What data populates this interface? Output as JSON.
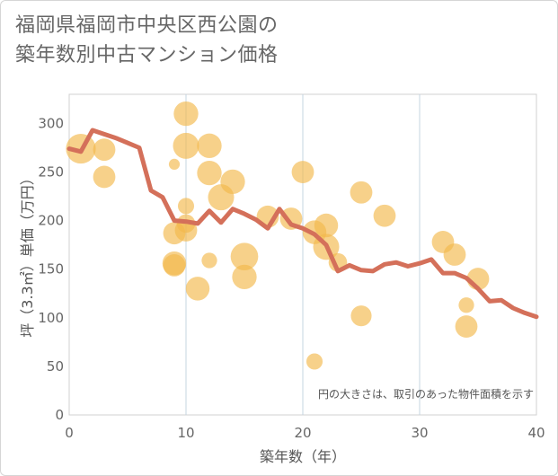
{
  "chart_data": {
    "type": "scatter",
    "title_lines": [
      "福岡県福岡市中央区西公園の",
      "築年数別中古マンション価格"
    ],
    "xlabel": "築年数（年）",
    "ylabel": "坪（3.3㎡）単価（万円）",
    "xlim": [
      0,
      40
    ],
    "ylim": [
      0,
      330
    ],
    "x_ticks": [
      0,
      10,
      20,
      30,
      40
    ],
    "y_ticks": [
      0,
      50,
      100,
      150,
      200,
      250,
      300
    ],
    "note": "円の大きさは、取引のあった物件面積を示す",
    "colors": {
      "bubble": "#f2b84b",
      "line": "#d4705a",
      "grid": "#c5d5e2"
    },
    "bubbles": [
      {
        "x": 1,
        "y": 274,
        "r": 3
      },
      {
        "x": 3,
        "y": 273,
        "r": 2
      },
      {
        "x": 3,
        "y": 245,
        "r": 2
      },
      {
        "x": 9,
        "y": 258,
        "r": 0.5
      },
      {
        "x": 10,
        "y": 310,
        "r": 2.3
      },
      {
        "x": 10,
        "y": 277,
        "r": 2.5
      },
      {
        "x": 10,
        "y": 215,
        "r": 1.2
      },
      {
        "x": 9,
        "y": 187,
        "r": 2
      },
      {
        "x": 10,
        "y": 190,
        "r": 2
      },
      {
        "x": 10,
        "y": 197,
        "r": 1.5
      },
      {
        "x": 9,
        "y": 156,
        "r": 2.2
      },
      {
        "x": 9,
        "y": 154,
        "r": 2
      },
      {
        "x": 11,
        "y": 130,
        "r": 2.2
      },
      {
        "x": 12,
        "y": 277,
        "r": 2.3
      },
      {
        "x": 12,
        "y": 249,
        "r": 2.3
      },
      {
        "x": 12,
        "y": 159,
        "r": 1.1
      },
      {
        "x": 13,
        "y": 224,
        "r": 2.5
      },
      {
        "x": 14,
        "y": 240,
        "r": 2.3
      },
      {
        "x": 15,
        "y": 163,
        "r": 2.7
      },
      {
        "x": 15,
        "y": 142,
        "r": 2.3
      },
      {
        "x": 17,
        "y": 204,
        "r": 2
      },
      {
        "x": 19,
        "y": 202,
        "r": 2
      },
      {
        "x": 20,
        "y": 250,
        "r": 2
      },
      {
        "x": 21,
        "y": 188,
        "r": 2.2
      },
      {
        "x": 22,
        "y": 195,
        "r": 2.2
      },
      {
        "x": 22,
        "y": 173,
        "r": 2.5
      },
      {
        "x": 23,
        "y": 157,
        "r": 1.5
      },
      {
        "x": 21,
        "y": 55,
        "r": 1.2
      },
      {
        "x": 25,
        "y": 229,
        "r": 2
      },
      {
        "x": 25,
        "y": 102,
        "r": 1.8
      },
      {
        "x": 27,
        "y": 205,
        "r": 2
      },
      {
        "x": 32,
        "y": 178,
        "r": 2
      },
      {
        "x": 33,
        "y": 165,
        "r": 2
      },
      {
        "x": 34,
        "y": 113,
        "r": 1.1
      },
      {
        "x": 34,
        "y": 91,
        "r": 2
      },
      {
        "x": 35,
        "y": 140,
        "r": 2
      }
    ],
    "line": {
      "x": [
        0,
        1,
        2,
        3,
        4,
        5,
        6,
        7,
        8,
        9,
        10,
        11,
        12,
        13,
        14,
        15,
        16,
        17,
        18,
        19,
        20,
        21,
        22,
        23,
        24,
        25,
        26,
        27,
        28,
        29,
        30,
        31,
        32,
        33,
        34,
        35,
        36,
        37,
        38,
        39,
        40
      ],
      "y": [
        274,
        271,
        293,
        289,
        285,
        280,
        275,
        231,
        224,
        200,
        199,
        197,
        210,
        198,
        212,
        207,
        201,
        192,
        212,
        196,
        192,
        186,
        175,
        148,
        154,
        149,
        148,
        155,
        157,
        153,
        156,
        160,
        146,
        146,
        141,
        130,
        117,
        118,
        110,
        105,
        101
      ]
    }
  }
}
